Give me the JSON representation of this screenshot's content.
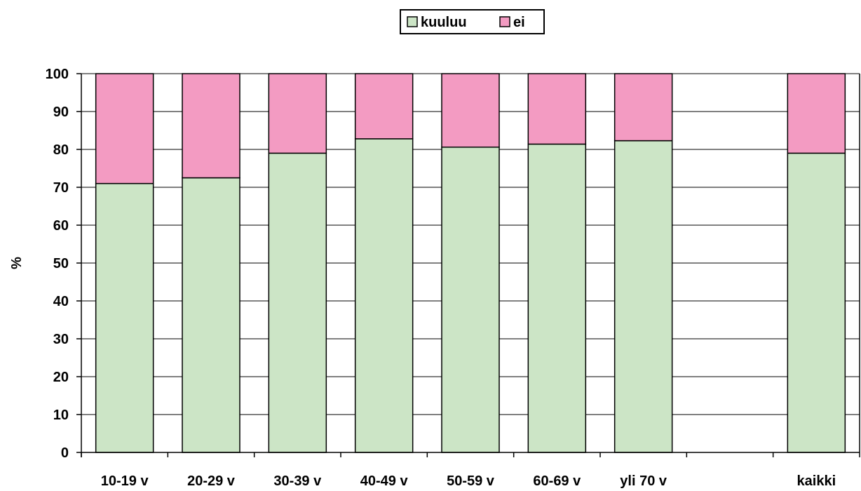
{
  "chart_data": {
    "type": "bar",
    "stacked": true,
    "categories": [
      "10-19 v",
      "20-29 v",
      "30-39 v",
      "40-49 v",
      "50-59 v",
      "60-69 v",
      "yli 70 v",
      "",
      "kaikki"
    ],
    "series": [
      {
        "name": "kuuluu",
        "color": "#cce5c6",
        "values": [
          71,
          72.5,
          79,
          82.8,
          80.6,
          81.4,
          82.3,
          null,
          79
        ]
      },
      {
        "name": "ei",
        "color": "#f39bc2",
        "values": [
          29,
          27.5,
          21,
          17.2,
          19.4,
          18.6,
          17.7,
          null,
          21
        ]
      }
    ],
    "title": "",
    "xlabel": "",
    "ylabel": "%",
    "ylim": [
      0,
      100
    ],
    "yticks": [
      "0",
      "10",
      "20",
      "30",
      "40",
      "50",
      "60",
      "70",
      "80",
      "90",
      "100"
    ],
    "grid": true,
    "legend_position": "top-center"
  }
}
